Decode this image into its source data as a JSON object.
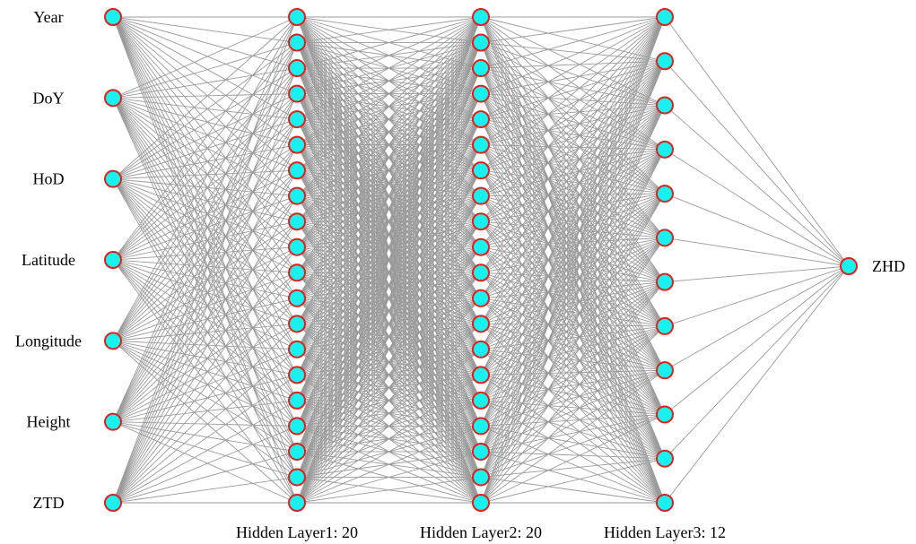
{
  "diagram": {
    "type": "fully-connected-neural-network",
    "colors": {
      "node_fill": "#19f0f0",
      "node_stroke": "#e0201a",
      "edge": "#9a9a9a",
      "text": "#000000"
    },
    "input_layer": {
      "nodes": [
        "Year",
        "DoY",
        "HoD",
        "Latitude",
        "Longitude",
        "Height",
        "ZTD"
      ]
    },
    "hidden_layers": [
      {
        "label": "Hidden Layer1: 20",
        "size": 20
      },
      {
        "label": "Hidden Layer2: 20",
        "size": 20
      },
      {
        "label": "Hidden Layer3: 12",
        "size": 12
      }
    ],
    "output_layer": {
      "nodes": [
        "ZHD"
      ]
    }
  }
}
